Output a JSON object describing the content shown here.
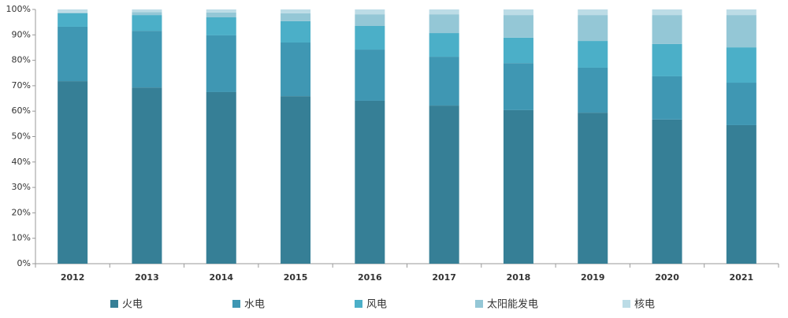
{
  "chart_data": {
    "type": "stacked_bar",
    "categories": [
      "2012",
      "2013",
      "2014",
      "2015",
      "2016",
      "2017",
      "2018",
      "2019",
      "2020",
      "2021"
    ],
    "series": [
      {
        "name": "火电",
        "color": "#367f96",
        "values": [
          71.8,
          69.3,
          67.5,
          65.9,
          64.1,
          62.2,
          60.4,
          59.4,
          56.7,
          54.5
        ]
      },
      {
        "name": "水电",
        "color": "#3f97b3",
        "values": [
          21.4,
          22.3,
          22.3,
          21.1,
          20.1,
          19.2,
          18.5,
          17.7,
          17.0,
          16.7
        ]
      },
      {
        "name": "风电",
        "color": "#4bafc8",
        "values": [
          5.3,
          6.2,
          7.1,
          8.4,
          9.3,
          9.3,
          10.0,
          10.5,
          12.7,
          13.9
        ]
      },
      {
        "name": "太阳能发电",
        "color": "#94c7d6",
        "values": [
          0.3,
          1.2,
          1.9,
          3.1,
          4.6,
          7.4,
          8.9,
          10.2,
          11.4,
          12.7
        ]
      },
      {
        "name": "核电",
        "color": "#bcdce6",
        "values": [
          1.2,
          1.0,
          1.2,
          1.5,
          1.9,
          1.9,
          2.2,
          2.2,
          2.2,
          2.2
        ]
      }
    ],
    "ylim": [
      0,
      100
    ],
    "yticks": [
      {
        "value": 0,
        "label": "0%"
      },
      {
        "value": 10,
        "label": "10%"
      },
      {
        "value": 20,
        "label": "20%"
      },
      {
        "value": 30,
        "label": "30%"
      },
      {
        "value": 40,
        "label": "40%"
      },
      {
        "value": 50,
        "label": "50%"
      },
      {
        "value": 60,
        "label": "60%"
      },
      {
        "value": 70,
        "label": "70%"
      },
      {
        "value": 80,
        "label": "80%"
      },
      {
        "value": 90,
        "label": "90%"
      },
      {
        "value": 100,
        "label": "100%"
      }
    ]
  }
}
